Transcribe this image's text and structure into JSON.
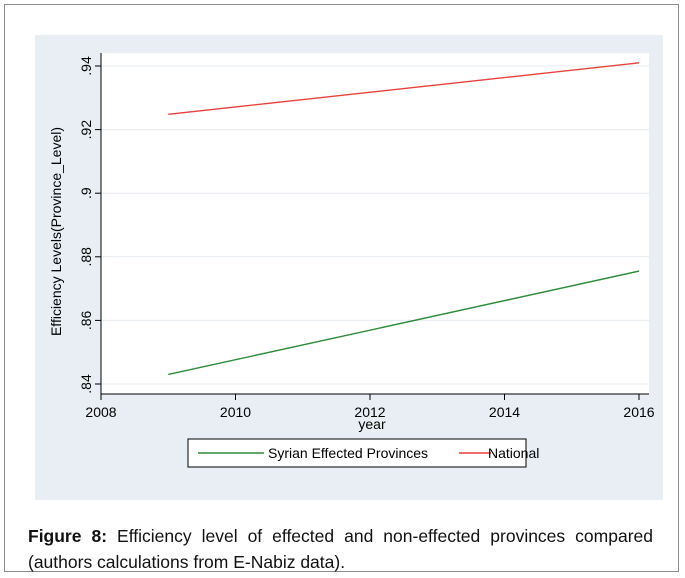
{
  "chart_data": {
    "type": "line",
    "title": "",
    "xlabel": "year",
    "ylabel": "Efficiency Levels(Province_Level)",
    "xlim": [
      2008,
      2016
    ],
    "ylim": [
      0.84,
      0.94
    ],
    "x_ticks": [
      2008,
      2010,
      2012,
      2014,
      2016
    ],
    "x_tick_labels": [
      "2008",
      "2010",
      "2012",
      "2014",
      "2016"
    ],
    "y_ticks": [
      0.84,
      0.86,
      0.88,
      0.9,
      0.92,
      0.94
    ],
    "y_tick_labels": [
      ".84",
      ".86",
      ".88",
      ".9",
      ".92",
      ".94"
    ],
    "grid": true,
    "legend_position": "bottom",
    "series": [
      {
        "name": "Syrian Effected Provinces",
        "color": "#2e8b3a",
        "x": [
          2009,
          2016
        ],
        "y": [
          0.843,
          0.8755
        ]
      },
      {
        "name": "National",
        "color": "#e8413a",
        "x": [
          2009,
          2016
        ],
        "y": [
          0.9248,
          0.941
        ]
      }
    ]
  },
  "caption": {
    "label": "Figure 8:",
    "text": " Efficiency level of effected and non-effected provinces compared (authors calculations from E-Nabiz data)."
  }
}
